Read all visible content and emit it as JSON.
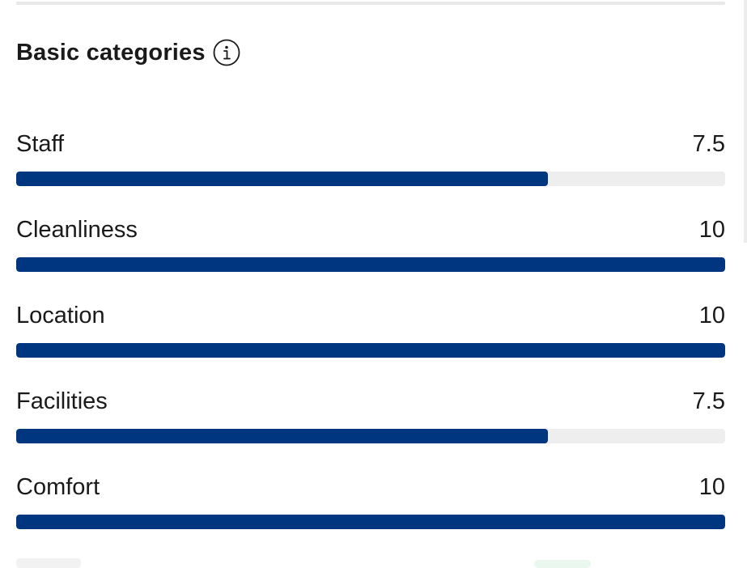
{
  "section": {
    "title": "Basic categories",
    "info_icon": "info-icon"
  },
  "categories": [
    {
      "label": "Staff",
      "score": "7.5",
      "fill_percent": 75
    },
    {
      "label": "Cleanliness",
      "score": "10",
      "fill_percent": 100
    },
    {
      "label": "Location",
      "score": "10",
      "fill_percent": 100
    },
    {
      "label": "Facilities",
      "score": "7.5",
      "fill_percent": 75
    },
    {
      "label": "Comfort",
      "score": "10",
      "fill_percent": 100
    }
  ],
  "colors": {
    "bar_fill": "#003580",
    "bar_track": "#eeeeee",
    "text": "#1a1a1a"
  }
}
